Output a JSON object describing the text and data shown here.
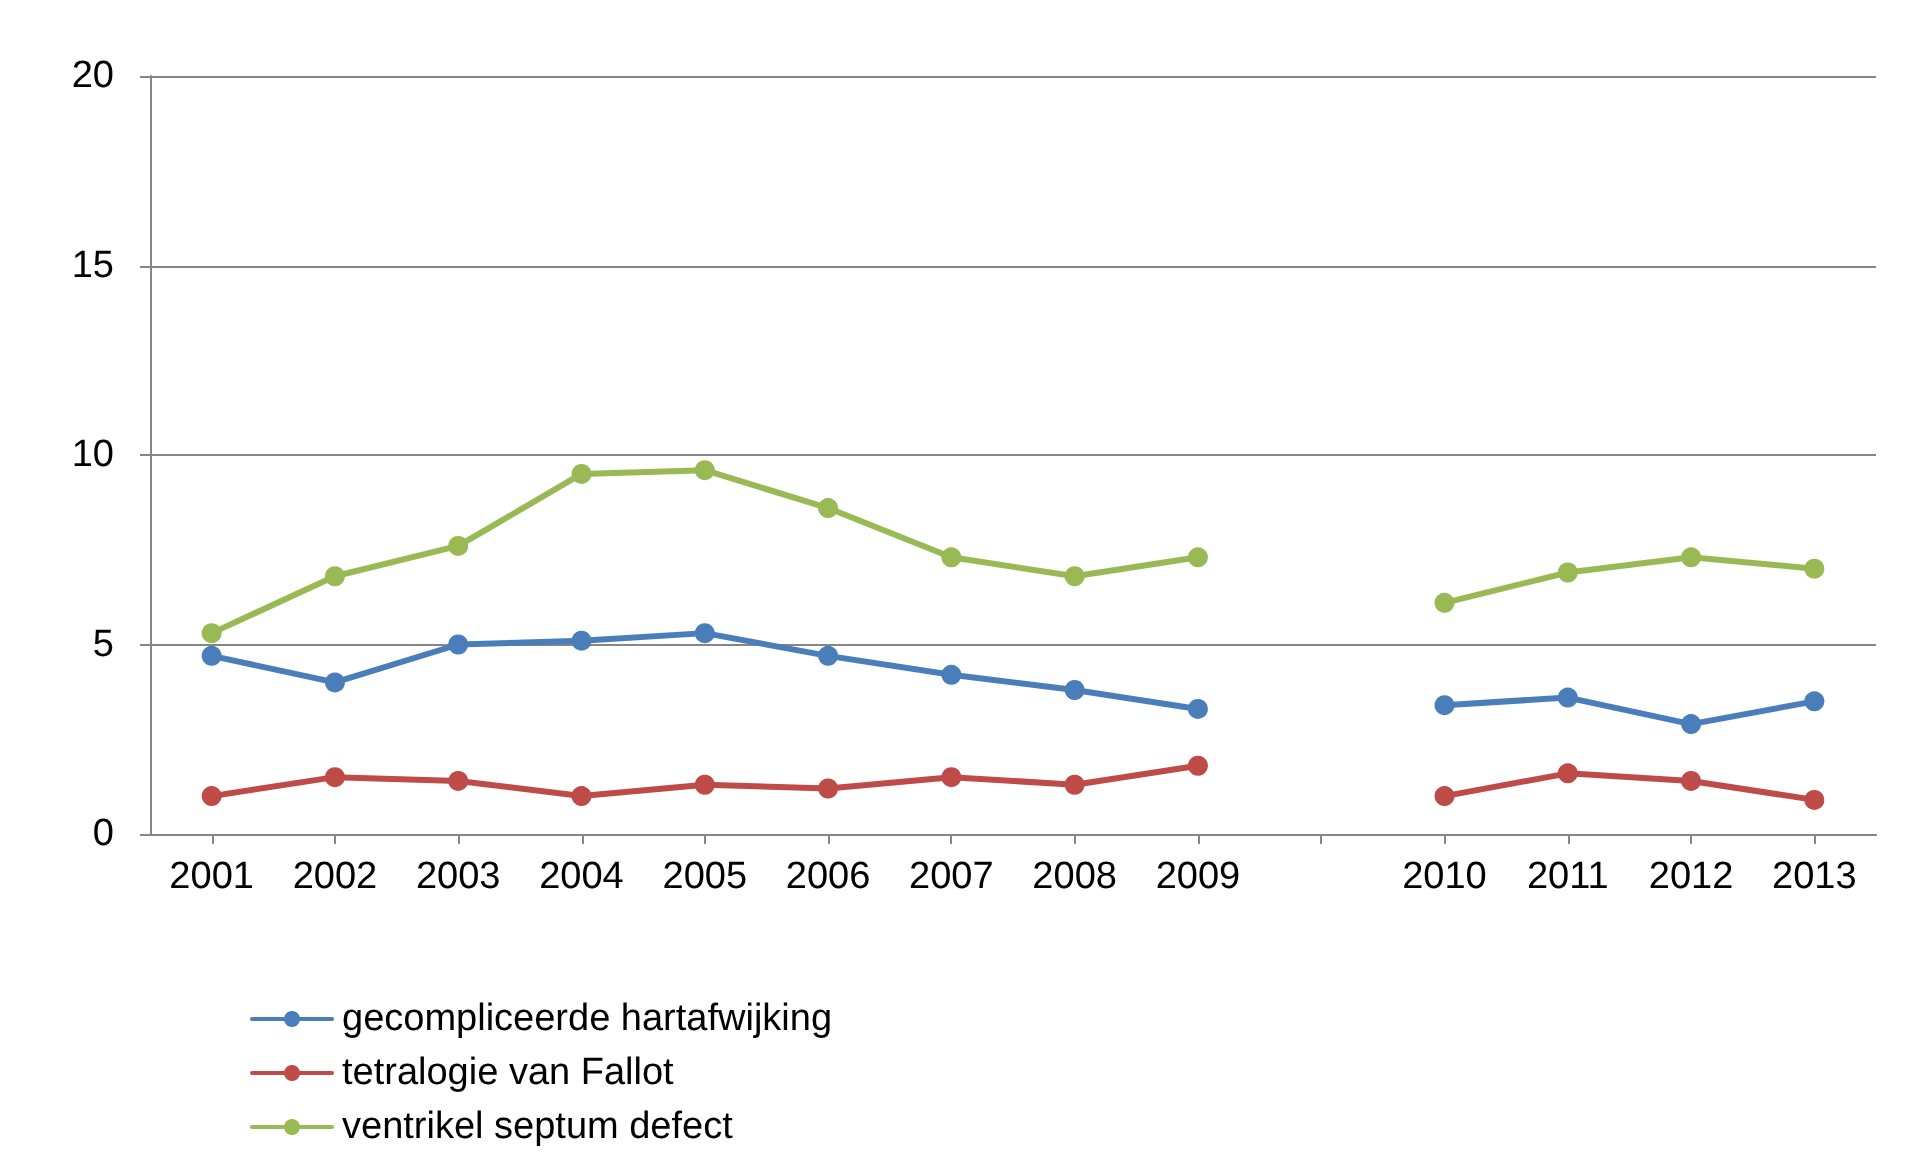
{
  "chart_data": {
    "type": "line",
    "categories": [
      "2001",
      "2002",
      "2003",
      "2004",
      "2005",
      "2006",
      "2007",
      "2008",
      "2009",
      null,
      "2010",
      "2011",
      "2012",
      "2013"
    ],
    "series": [
      {
        "name": "gecompliceerde hartafwijking",
        "color": "#4a7ebb",
        "values": [
          4.7,
          4.0,
          5.0,
          5.1,
          5.3,
          4.7,
          4.2,
          3.8,
          3.3,
          null,
          3.4,
          3.6,
          2.9,
          3.5
        ]
      },
      {
        "name": "tetralogie van Fallot",
        "color": "#be4b48",
        "values": [
          1.0,
          1.5,
          1.4,
          1.0,
          1.3,
          1.2,
          1.5,
          1.3,
          1.8,
          null,
          1.0,
          1.6,
          1.4,
          0.9
        ]
      },
      {
        "name": "ventrikel septum defect",
        "color": "#98b954",
        "values": [
          5.3,
          6.8,
          7.6,
          9.5,
          9.6,
          8.6,
          7.3,
          6.8,
          7.3,
          null,
          6.1,
          6.9,
          7.3,
          7.0
        ]
      }
    ],
    "ylim": [
      0,
      20
    ],
    "yticks": [
      0,
      5,
      10,
      15,
      20
    ],
    "grid": "y",
    "legend": "bottom left",
    "marker": "circle",
    "line_style": "solid"
  }
}
